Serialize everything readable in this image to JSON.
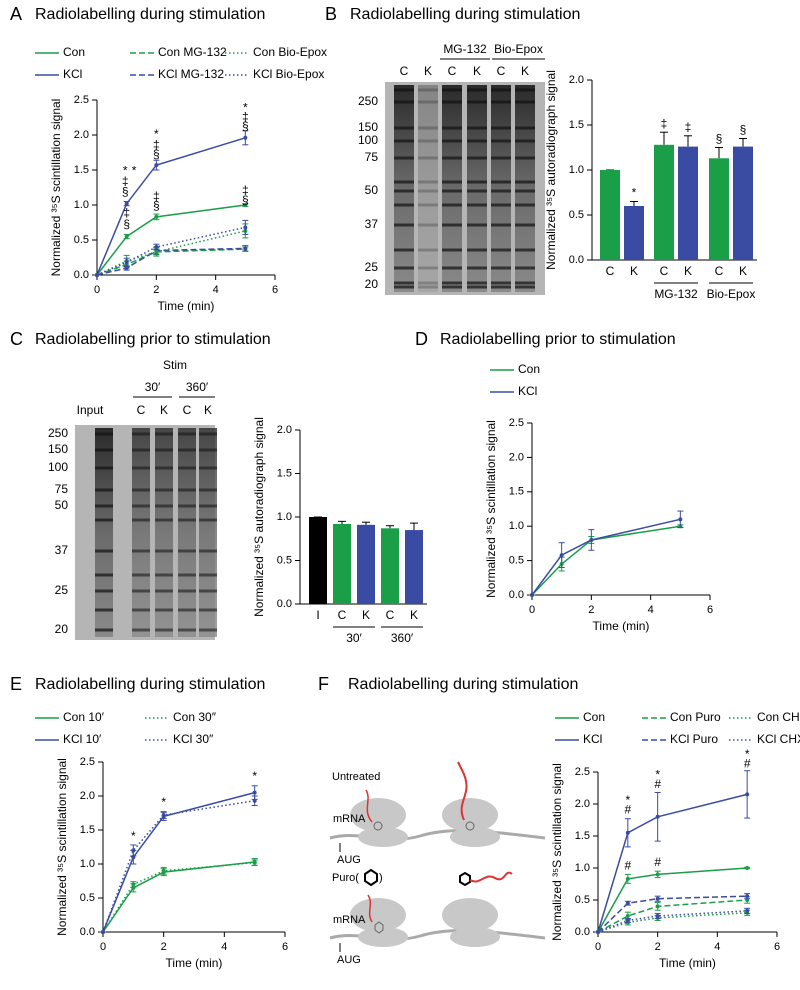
{
  "panel_labels": [
    "A",
    "B",
    "C",
    "D",
    "E",
    "F"
  ],
  "chart_data": [
    {
      "type": "line",
      "title": "Radiolabelling during stimulation",
      "xlabel": "Time (min)",
      "ylabel": "Normalized ³⁵S scintillation signal",
      "x": [
        0,
        1,
        2,
        5
      ],
      "series": [
        {
          "name": "Con",
          "color": "#1a9e48",
          "dash": "solid",
          "values": [
            0,
            0.55,
            0.83,
            1.0
          ],
          "errors": [
            0,
            0.03,
            0.04,
            0.02
          ]
        },
        {
          "name": "KCl",
          "color": "#3a4ba3",
          "dash": "solid",
          "values": [
            0,
            1.02,
            1.57,
            1.96
          ],
          "errors": [
            0,
            0.03,
            0.07,
            0.1
          ]
        },
        {
          "name": "Con MG-132",
          "color": "#1a9e48",
          "dash": "dashed",
          "values": [
            0,
            0.15,
            0.33,
            0.37
          ],
          "errors": [
            0,
            0.05,
            0.04,
            0.03
          ]
        },
        {
          "name": "KCl MG-132",
          "color": "#3a4ba3",
          "dash": "dashed",
          "values": [
            0,
            0.1,
            0.35,
            0.38
          ],
          "errors": [
            0,
            0.03,
            0.05,
            0.04
          ]
        },
        {
          "name": "Con Bio-Epox",
          "color": "#1a9e48",
          "dash": "dotted",
          "values": [
            0,
            0.2,
            0.33,
            0.63
          ],
          "errors": [
            0,
            0.08,
            0.06,
            0.1
          ]
        },
        {
          "name": "KCl Bio-Epox",
          "color": "#3a4ba3",
          "dash": "dotted",
          "values": [
            0,
            0.18,
            0.4,
            0.68
          ],
          "errors": [
            0,
            0.06,
            0.04,
            0.1
          ]
        }
      ],
      "annotations": [
        {
          "x": 0.95,
          "y": 1.18,
          "text": "§"
        },
        {
          "x": 0.95,
          "y": 1.33,
          "text": "‡"
        },
        {
          "x": 0.95,
          "y": 1.48,
          "text": "*"
        },
        {
          "x": 1.25,
          "y": 1.48,
          "text": "*"
        },
        {
          "x": 1,
          "y": 0.88,
          "text": "‡"
        },
        {
          "x": 1,
          "y": 0.72,
          "text": "§"
        },
        {
          "x": 2,
          "y": 1.72,
          "text": "§"
        },
        {
          "x": 2,
          "y": 1.85,
          "text": "‡"
        },
        {
          "x": 2,
          "y": 2.0,
          "text": "*"
        },
        {
          "x": 2,
          "y": 1.12,
          "text": "‡"
        },
        {
          "x": 2,
          "y": 0.98,
          "text": "§"
        },
        {
          "x": 5,
          "y": 2.12,
          "text": "§"
        },
        {
          "x": 5,
          "y": 2.25,
          "text": "‡"
        },
        {
          "x": 5,
          "y": 2.38,
          "text": "*"
        },
        {
          "x": 5,
          "y": 1.2,
          "text": "‡"
        },
        {
          "x": 5,
          "y": 1.06,
          "text": "§"
        }
      ],
      "xlim": [
        0,
        6
      ],
      "xticks": [
        0,
        2,
        4,
        6
      ],
      "ylim": [
        0,
        2.5
      ],
      "yticks": [
        {
          "value": 0,
          "label": "0.0"
        },
        0.5,
        {
          "value": 1,
          "label": "1.0"
        },
        1.5,
        {
          "value": 2,
          "label": "2.0"
        },
        2.5
      ]
    },
    {
      "type": "bar",
      "title": "Radiolabelling during stimulation",
      "ylabel": "Normalized ³⁵S autoradiograph signal",
      "categories": [
        "C",
        "K",
        "C",
        "K",
        "C",
        "K"
      ],
      "groups": [
        null,
        null,
        "MG-132",
        "MG-132",
        "Bio-Epox",
        "Bio-Epox"
      ],
      "values": [
        1.0,
        0.6,
        1.28,
        1.26,
        1.13,
        1.26
      ],
      "errors": [
        0,
        0.05,
        0.14,
        0.12,
        0.12,
        0.09
      ],
      "colors": [
        "#1a9e48",
        "#3a4ba3",
        "#1a9e48",
        "#3a4ba3",
        "#1a9e48",
        "#3a4ba3"
      ],
      "significance": [
        null,
        "*",
        "‡",
        "‡",
        "§",
        "§"
      ],
      "ylim": [
        0,
        2
      ],
      "yticks": [
        {
          "value": 0,
          "label": "0.0"
        },
        0.5,
        {
          "value": 1,
          "label": "1.0"
        },
        1.5,
        {
          "value": 2,
          "label": "2.0"
        }
      ]
    },
    {
      "type": "bar",
      "title": "Radiolabelling prior to stimulation",
      "ylabel": "Normalized ³⁵S autoradiograph signal",
      "categories": [
        "I",
        "C",
        "K",
        "C",
        "K"
      ],
      "groups": [
        null,
        "30′",
        "30′",
        "360′",
        "360′"
      ],
      "values": [
        1.0,
        0.92,
        0.91,
        0.87,
        0.85
      ],
      "errors": [
        0,
        0.03,
        0.03,
        0.03,
        0.08
      ],
      "colors": [
        "#000000",
        "#1a9e48",
        "#3a4ba3",
        "#1a9e48",
        "#3a4ba3"
      ],
      "significance": [
        null,
        null,
        null,
        null,
        null
      ],
      "ylim": [
        0,
        2
      ],
      "yticks": [
        {
          "value": 0,
          "label": "0.0"
        },
        0.5,
        {
          "value": 1,
          "label": "1.0"
        },
        1.5,
        {
          "value": 2,
          "label": "2.0"
        }
      ]
    },
    {
      "type": "line",
      "title": "Radiolabelling prior to stimulation",
      "xlabel": "Time (min)",
      "ylabel": "Normalized ³⁵S scintillation signal",
      "x": [
        0,
        1,
        2,
        5
      ],
      "series": [
        {
          "name": "Con",
          "color": "#1a9e48",
          "dash": "solid",
          "values": [
            0,
            0.45,
            0.8,
            1.0
          ],
          "errors": [
            0,
            0.1,
            0.05,
            0.02
          ]
        },
        {
          "name": "KCl",
          "color": "#3a4ba3",
          "dash": "solid",
          "values": [
            0,
            0.58,
            0.8,
            1.1
          ],
          "errors": [
            0,
            0.18,
            0.15,
            0.12
          ]
        }
      ],
      "annotations": [],
      "xlim": [
        0,
        6
      ],
      "xticks": [
        0,
        2,
        4,
        6
      ],
      "ylim": [
        0,
        2.5
      ],
      "yticks": [
        {
          "value": 0,
          "label": "0.0"
        },
        0.5,
        {
          "value": 1,
          "label": "1.0"
        },
        1.5,
        {
          "value": 2,
          "label": "2.0"
        },
        2.5
      ]
    },
    {
      "type": "line",
      "title": "Radiolabelling during stimulation",
      "xlabel": "Time (min)",
      "ylabel": "Normalized ³⁵S scintillation signal",
      "x": [
        0,
        1,
        2,
        5
      ],
      "series": [
        {
          "name": "Con 10′",
          "color": "#1a9e48",
          "dash": "solid",
          "values": [
            0,
            0.65,
            0.88,
            1.03
          ],
          "errors": [
            0,
            0.06,
            0.05,
            0.05
          ]
        },
        {
          "name": "KCl 10′",
          "color": "#3a4ba3",
          "dash": "solid",
          "values": [
            0,
            1.1,
            1.7,
            2.05
          ],
          "errors": [
            0,
            0.1,
            0.06,
            0.1
          ]
        },
        {
          "name": "Con 30″",
          "color": "#1a9e48",
          "dash": "dotted",
          "values": [
            0,
            0.7,
            0.9,
            1.02
          ],
          "errors": [
            0,
            0.04,
            0.05,
            0.04
          ]
        },
        {
          "name": "KCl 30″",
          "color": "#3a4ba3",
          "dash": "dotted",
          "values": [
            0,
            1.2,
            1.72,
            1.93
          ],
          "errors": [
            0,
            0.08,
            0.05,
            0.07
          ]
        }
      ],
      "annotations": [
        {
          "x": 1,
          "y": 1.4,
          "text": "*"
        },
        {
          "x": 2,
          "y": 1.9,
          "text": "*"
        },
        {
          "x": 5,
          "y": 2.28,
          "text": "*"
        }
      ],
      "xlim": [
        0,
        6
      ],
      "xticks": [
        0,
        2,
        4,
        6
      ],
      "ylim": [
        0,
        2.5
      ],
      "yticks": [
        {
          "value": 0,
          "label": "0.0"
        },
        0.5,
        {
          "value": 1,
          "label": "1.0"
        },
        1.5,
        {
          "value": 2,
          "label": "2.0"
        },
        2.5
      ]
    },
    {
      "type": "line",
      "title": "Radiolabelling during stimulation",
      "xlabel": "Time (min)",
      "ylabel": "Normalized ³⁵S scintillation signal",
      "x": [
        0,
        1,
        2,
        5
      ],
      "series": [
        {
          "name": "Con",
          "color": "#1a9e48",
          "dash": "solid",
          "values": [
            0,
            0.83,
            0.9,
            1.0
          ],
          "errors": [
            0,
            0.07,
            0.05,
            0.01
          ]
        },
        {
          "name": "KCl",
          "color": "#3a4ba3",
          "dash": "solid",
          "values": [
            0,
            1.55,
            1.8,
            2.15
          ],
          "errors": [
            0,
            0.22,
            0.38,
            0.37
          ]
        },
        {
          "name": "Con Puro",
          "color": "#1a9e48",
          "dash": "dashed",
          "values": [
            0,
            0.25,
            0.4,
            0.5
          ],
          "errors": [
            0,
            0.06,
            0.06,
            0.05
          ]
        },
        {
          "name": "KCl Puro",
          "color": "#3a4ba3",
          "dash": "dashed",
          "values": [
            0,
            0.45,
            0.52,
            0.56
          ],
          "errors": [
            0,
            0.03,
            0.04,
            0.04
          ]
        },
        {
          "name": "Con CHX",
          "color": "#1a9e48",
          "dash": "dotted",
          "values": [
            0,
            0.15,
            0.22,
            0.3
          ],
          "errors": [
            0,
            0.04,
            0.04,
            0.04
          ]
        },
        {
          "name": "KCl CHX",
          "color": "#3a4ba3",
          "dash": "dotted",
          "values": [
            0,
            0.18,
            0.25,
            0.33
          ],
          "errors": [
            0,
            0.03,
            0.04,
            0.04
          ]
        }
      ],
      "annotations": [
        {
          "x": 1,
          "y": 1.9,
          "text": "#"
        },
        {
          "x": 1,
          "y": 2.05,
          "text": "*"
        },
        {
          "x": 2,
          "y": 2.3,
          "text": "#"
        },
        {
          "x": 2,
          "y": 2.45,
          "text": "*"
        },
        {
          "x": 5,
          "y": 2.62,
          "text": "#"
        },
        {
          "x": 5,
          "y": 2.77,
          "text": "*"
        },
        {
          "x": 1,
          "y": 1.03,
          "text": "#"
        },
        {
          "x": 2,
          "y": 1.08,
          "text": "#"
        }
      ],
      "xlim": [
        0,
        6
      ],
      "xticks": [
        0,
        2,
        4,
        6
      ],
      "ylim": [
        0,
        2.5
      ],
      "yticks": [
        {
          "value": 0,
          "label": "0.0"
        },
        0.5,
        {
          "value": 1,
          "label": "1.0"
        },
        1.5,
        {
          "value": 2,
          "label": "2.0"
        },
        2.5
      ]
    }
  ],
  "gels": [
    {
      "groups": [
        "MG-132",
        "Bio-Epox"
      ],
      "lanes": [
        "C",
        "K",
        "C",
        "K",
        "C",
        "K"
      ],
      "markers": [
        250,
        150,
        100,
        75,
        50,
        37,
        25,
        20
      ]
    },
    {
      "header": "Stim",
      "groups": [
        "30′",
        "360′"
      ],
      "input": "Input",
      "lanes": [
        "C",
        "K",
        "C",
        "K"
      ],
      "markers": [
        250,
        150,
        100,
        75,
        50,
        37,
        25,
        20
      ]
    }
  ],
  "diagram": {
    "labels": [
      "Untreated",
      "mRNA",
      "AUG",
      "Puro(",
      ")",
      "mRNA",
      "AUG"
    ]
  }
}
